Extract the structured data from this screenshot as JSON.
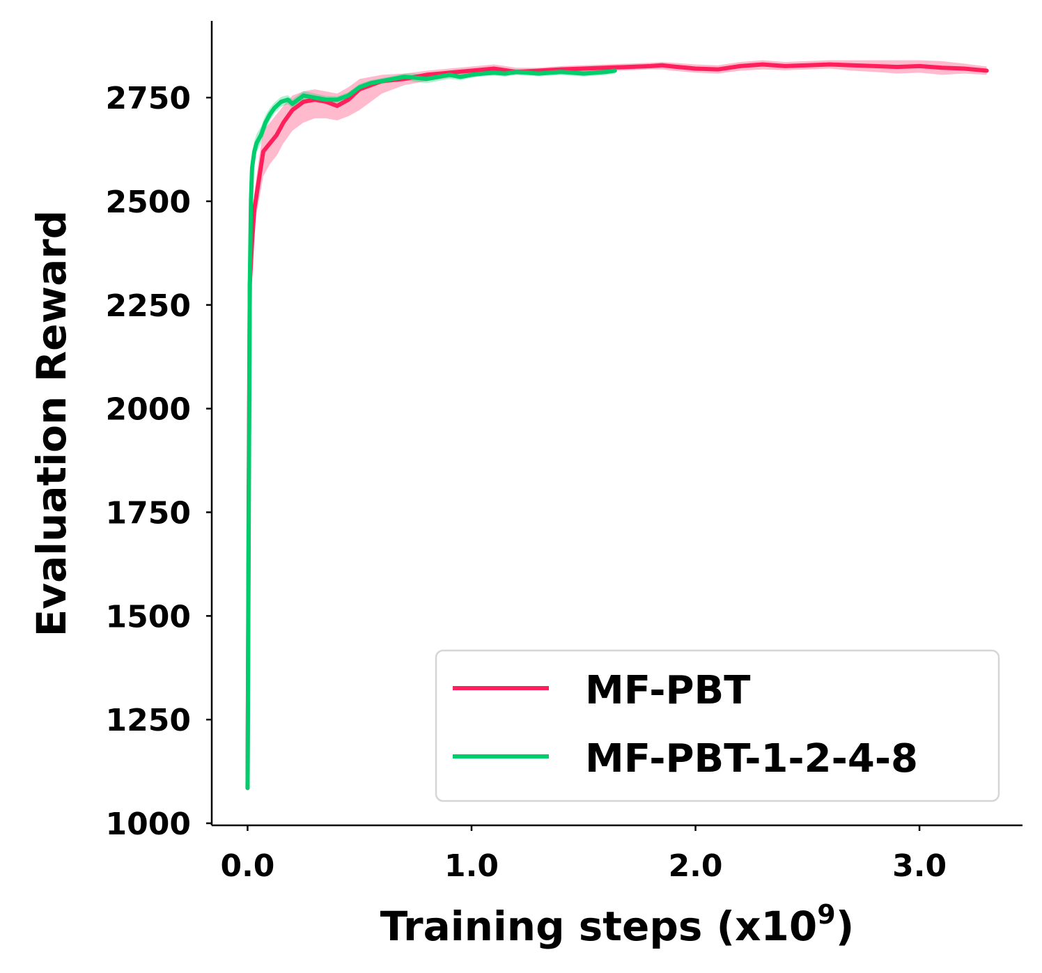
{
  "chart_data": {
    "type": "line",
    "xlabel_main": "Training steps (x10",
    "xlabel_sup": "9",
    "xlabel_end": ")",
    "ylabel": "Evaluation Reward",
    "xlim": [
      -0.16,
      3.46
    ],
    "ylim": [
      995,
      2935
    ],
    "xticks": [
      0.0,
      1.0,
      2.0,
      3.0
    ],
    "xtick_labels": [
      "0.0",
      "1.0",
      "2.0",
      "3.0"
    ],
    "yticks": [
      1000,
      1250,
      1500,
      1750,
      2000,
      2250,
      2500,
      2750
    ],
    "ytick_labels": [
      "1000",
      "1250",
      "1500",
      "1750",
      "2000",
      "2250",
      "2500",
      "2750"
    ],
    "grid": false,
    "legend_position": "lower-right",
    "series": [
      {
        "name": "MF-PBT",
        "color": "#ff1f5b",
        "x": [
          0.0,
          0.005,
          0.01,
          0.02,
          0.03,
          0.05,
          0.07,
          0.1,
          0.13,
          0.16,
          0.2,
          0.25,
          0.3,
          0.35,
          0.4,
          0.45,
          0.5,
          0.55,
          0.6,
          0.7,
          0.8,
          0.9,
          1.0,
          1.1,
          1.2,
          1.3,
          1.4,
          1.5,
          1.6,
          1.7,
          1.8,
          1.85,
          1.9,
          2.0,
          2.1,
          2.2,
          2.3,
          2.4,
          2.5,
          2.6,
          2.7,
          2.8,
          2.9,
          3.0,
          3.1,
          3.2,
          3.3
        ],
        "y": [
          1085,
          1800,
          2300,
          2400,
          2480,
          2550,
          2620,
          2640,
          2660,
          2690,
          2720,
          2740,
          2745,
          2740,
          2730,
          2745,
          2770,
          2780,
          2790,
          2795,
          2805,
          2810,
          2815,
          2820,
          2812,
          2815,
          2818,
          2820,
          2822,
          2824,
          2826,
          2828,
          2825,
          2820,
          2818,
          2826,
          2830,
          2826,
          2828,
          2830,
          2828,
          2826,
          2824,
          2826,
          2822,
          2820,
          2815
        ],
        "lower": [
          1085,
          1750,
          2250,
          2360,
          2440,
          2500,
          2560,
          2590,
          2610,
          2640,
          2670,
          2690,
          2700,
          2700,
          2695,
          2705,
          2720,
          2740,
          2760,
          2780,
          2790,
          2798,
          2805,
          2808,
          2805,
          2808,
          2810,
          2812,
          2814,
          2816,
          2818,
          2818,
          2815,
          2810,
          2808,
          2815,
          2818,
          2816,
          2818,
          2820,
          2815,
          2812,
          2808,
          2810,
          2805,
          2808,
          2805
        ],
        "upper": [
          1085,
          1850,
          2350,
          2440,
          2520,
          2600,
          2670,
          2690,
          2710,
          2730,
          2755,
          2765,
          2770,
          2765,
          2760,
          2775,
          2795,
          2800,
          2805,
          2808,
          2815,
          2820,
          2825,
          2830,
          2822,
          2822,
          2826,
          2828,
          2830,
          2832,
          2834,
          2836,
          2834,
          2830,
          2828,
          2836,
          2840,
          2836,
          2838,
          2840,
          2840,
          2840,
          2840,
          2840,
          2838,
          2832,
          2825
        ]
      },
      {
        "name": "MF-PBT-1-2-4-8",
        "color": "#00cd6c",
        "x": [
          0.0,
          0.005,
          0.01,
          0.015,
          0.02,
          0.03,
          0.04,
          0.06,
          0.08,
          0.1,
          0.12,
          0.15,
          0.18,
          0.2,
          0.25,
          0.3,
          0.35,
          0.4,
          0.45,
          0.5,
          0.55,
          0.6,
          0.65,
          0.7,
          0.75,
          0.8,
          0.85,
          0.9,
          0.95,
          1.0,
          1.05,
          1.1,
          1.15,
          1.2,
          1.25,
          1.3,
          1.35,
          1.4,
          1.45,
          1.5,
          1.55,
          1.6,
          1.64
        ],
        "y": [
          1085,
          1700,
          2300,
          2500,
          2580,
          2620,
          2640,
          2660,
          2690,
          2710,
          2725,
          2740,
          2745,
          2735,
          2755,
          2750,
          2745,
          2745,
          2755,
          2775,
          2785,
          2790,
          2795,
          2800,
          2798,
          2795,
          2800,
          2805,
          2800,
          2805,
          2808,
          2810,
          2808,
          2812,
          2810,
          2808,
          2810,
          2812,
          2810,
          2808,
          2810,
          2812,
          2815
        ],
        "lower": [
          1085,
          1650,
          2250,
          2460,
          2550,
          2595,
          2618,
          2640,
          2672,
          2695,
          2712,
          2728,
          2734,
          2724,
          2744,
          2740,
          2736,
          2737,
          2747,
          2767,
          2778,
          2783,
          2788,
          2792,
          2788,
          2785,
          2790,
          2795,
          2792,
          2798,
          2802,
          2803,
          2801,
          2805,
          2803,
          2802,
          2803,
          2805,
          2803,
          2801,
          2803,
          2805,
          2808
        ],
        "upper": [
          1085,
          1750,
          2350,
          2540,
          2610,
          2645,
          2662,
          2680,
          2708,
          2725,
          2738,
          2752,
          2756,
          2746,
          2766,
          2760,
          2754,
          2753,
          2763,
          2783,
          2792,
          2797,
          2802,
          2808,
          2808,
          2805,
          2810,
          2815,
          2808,
          2812,
          2814,
          2817,
          2815,
          2819,
          2817,
          2814,
          2817,
          2819,
          2817,
          2815,
          2817,
          2819,
          2822
        ]
      }
    ]
  }
}
